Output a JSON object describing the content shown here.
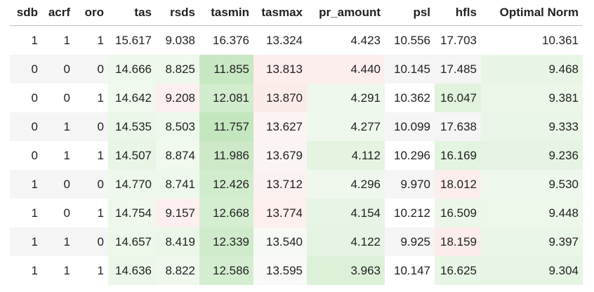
{
  "table": {
    "columns": [
      "sdb",
      "acrf",
      "oro",
      "tas",
      "rsds",
      "tasmin",
      "tasmax",
      "pr_amount",
      "psl",
      "hfls",
      "Optimal Norm"
    ],
    "rows": [
      [
        "1",
        "1",
        "1",
        "15.617",
        "9.038",
        "16.376",
        "13.324",
        "4.423",
        "10.556",
        "17.703",
        "10.361"
      ],
      [
        "0",
        "0",
        "0",
        "14.666",
        "8.825",
        "11.855",
        "13.813",
        "4.440",
        "10.145",
        "17.485",
        "9.468"
      ],
      [
        "0",
        "0",
        "1",
        "14.642",
        "9.208",
        "12.081",
        "13.870",
        "4.291",
        "10.362",
        "16.047",
        "9.381"
      ],
      [
        "0",
        "1",
        "0",
        "14.535",
        "8.503",
        "11.757",
        "13.627",
        "4.277",
        "10.099",
        "17.638",
        "9.333"
      ],
      [
        "0",
        "1",
        "1",
        "14.507",
        "8.874",
        "11.986",
        "13.679",
        "4.112",
        "10.296",
        "16.169",
        "9.236"
      ],
      [
        "1",
        "0",
        "0",
        "14.770",
        "8.741",
        "12.426",
        "13.712",
        "4.296",
        "9.970",
        "18.012",
        "9.530"
      ],
      [
        "1",
        "0",
        "1",
        "14.754",
        "9.157",
        "12.668",
        "13.774",
        "4.154",
        "10.212",
        "16.509",
        "9.448"
      ],
      [
        "1",
        "1",
        "0",
        "14.657",
        "8.419",
        "12.339",
        "13.540",
        "4.122",
        "9.925",
        "18.159",
        "9.397"
      ],
      [
        "1",
        "1",
        "1",
        "14.636",
        "8.822",
        "12.586",
        "13.595",
        "3.963",
        "10.147",
        "16.625",
        "9.304"
      ]
    ],
    "cell_colors": [
      [
        "#ffffff",
        "#ffffff",
        "#ffffff",
        "#ffffff",
        "#ffffff",
        "#ffffff",
        "#ffffff",
        "#ffffff",
        "#ffffff",
        "#ffffff",
        "#ffffff"
      ],
      [
        "#f5f5f5",
        "#f5f5f5",
        "#f5f5f5",
        "#eef8ec",
        "#eef8ec",
        "#c8e8c3",
        "#fdeeee",
        "#fdeeee",
        "#f5f5f5",
        "#f5f5f5",
        "#e9f6e6"
      ],
      [
        "#ffffff",
        "#ffffff",
        "#ffffff",
        "#f1f9ef",
        "#fcefef",
        "#d2ecce",
        "#fcece9",
        "#eef8ec",
        "#ffffff",
        "#e1f3dd",
        "#ecf7e9"
      ],
      [
        "#f5f5f5",
        "#f5f5f5",
        "#f5f5f5",
        "#ebf7e8",
        "#eef8ec",
        "#c4e7bf",
        "#fcf3f3",
        "#eff8ed",
        "#f5f5f5",
        "#f5f5f5",
        "#eaf6e7"
      ],
      [
        "#ffffff",
        "#ffffff",
        "#ffffff",
        "#e9f6e6",
        "#f1f9ef",
        "#cde9c8",
        "#fbf4f4",
        "#e4f4e1",
        "#ffffff",
        "#e3f4e0",
        "#e6f5e3"
      ],
      [
        "#f5f5f5",
        "#f5f5f5",
        "#f5f5f5",
        "#eff8ed",
        "#eff8ed",
        "#d2ecce",
        "#fcf1f1",
        "#f0f8ee",
        "#f5f5f5",
        "#fdeeee",
        "#eef8ec"
      ],
      [
        "#ffffff",
        "#ffffff",
        "#ffffff",
        "#f0f8ee",
        "#fdefef",
        "#d5eed1",
        "#fcefed",
        "#e7f5e4",
        "#ffffff",
        "#ecf7e9",
        "#edf7ea"
      ],
      [
        "#f5f5f5",
        "#f5f5f5",
        "#f5f5f5",
        "#edf7ea",
        "#ecf7e9",
        "#d0ebcc",
        "#f6f9f4",
        "#e6f5e3",
        "#f5f5f5",
        "#fcecec",
        "#eaf6e7"
      ],
      [
        "#ffffff",
        "#ffffff",
        "#ffffff",
        "#ecf7e9",
        "#f0f8ee",
        "#d4edd0",
        "#f9faf8",
        "#ddf1d9",
        "#ffffff",
        "#e8f6e5",
        "#e7f5e4"
      ]
    ]
  }
}
